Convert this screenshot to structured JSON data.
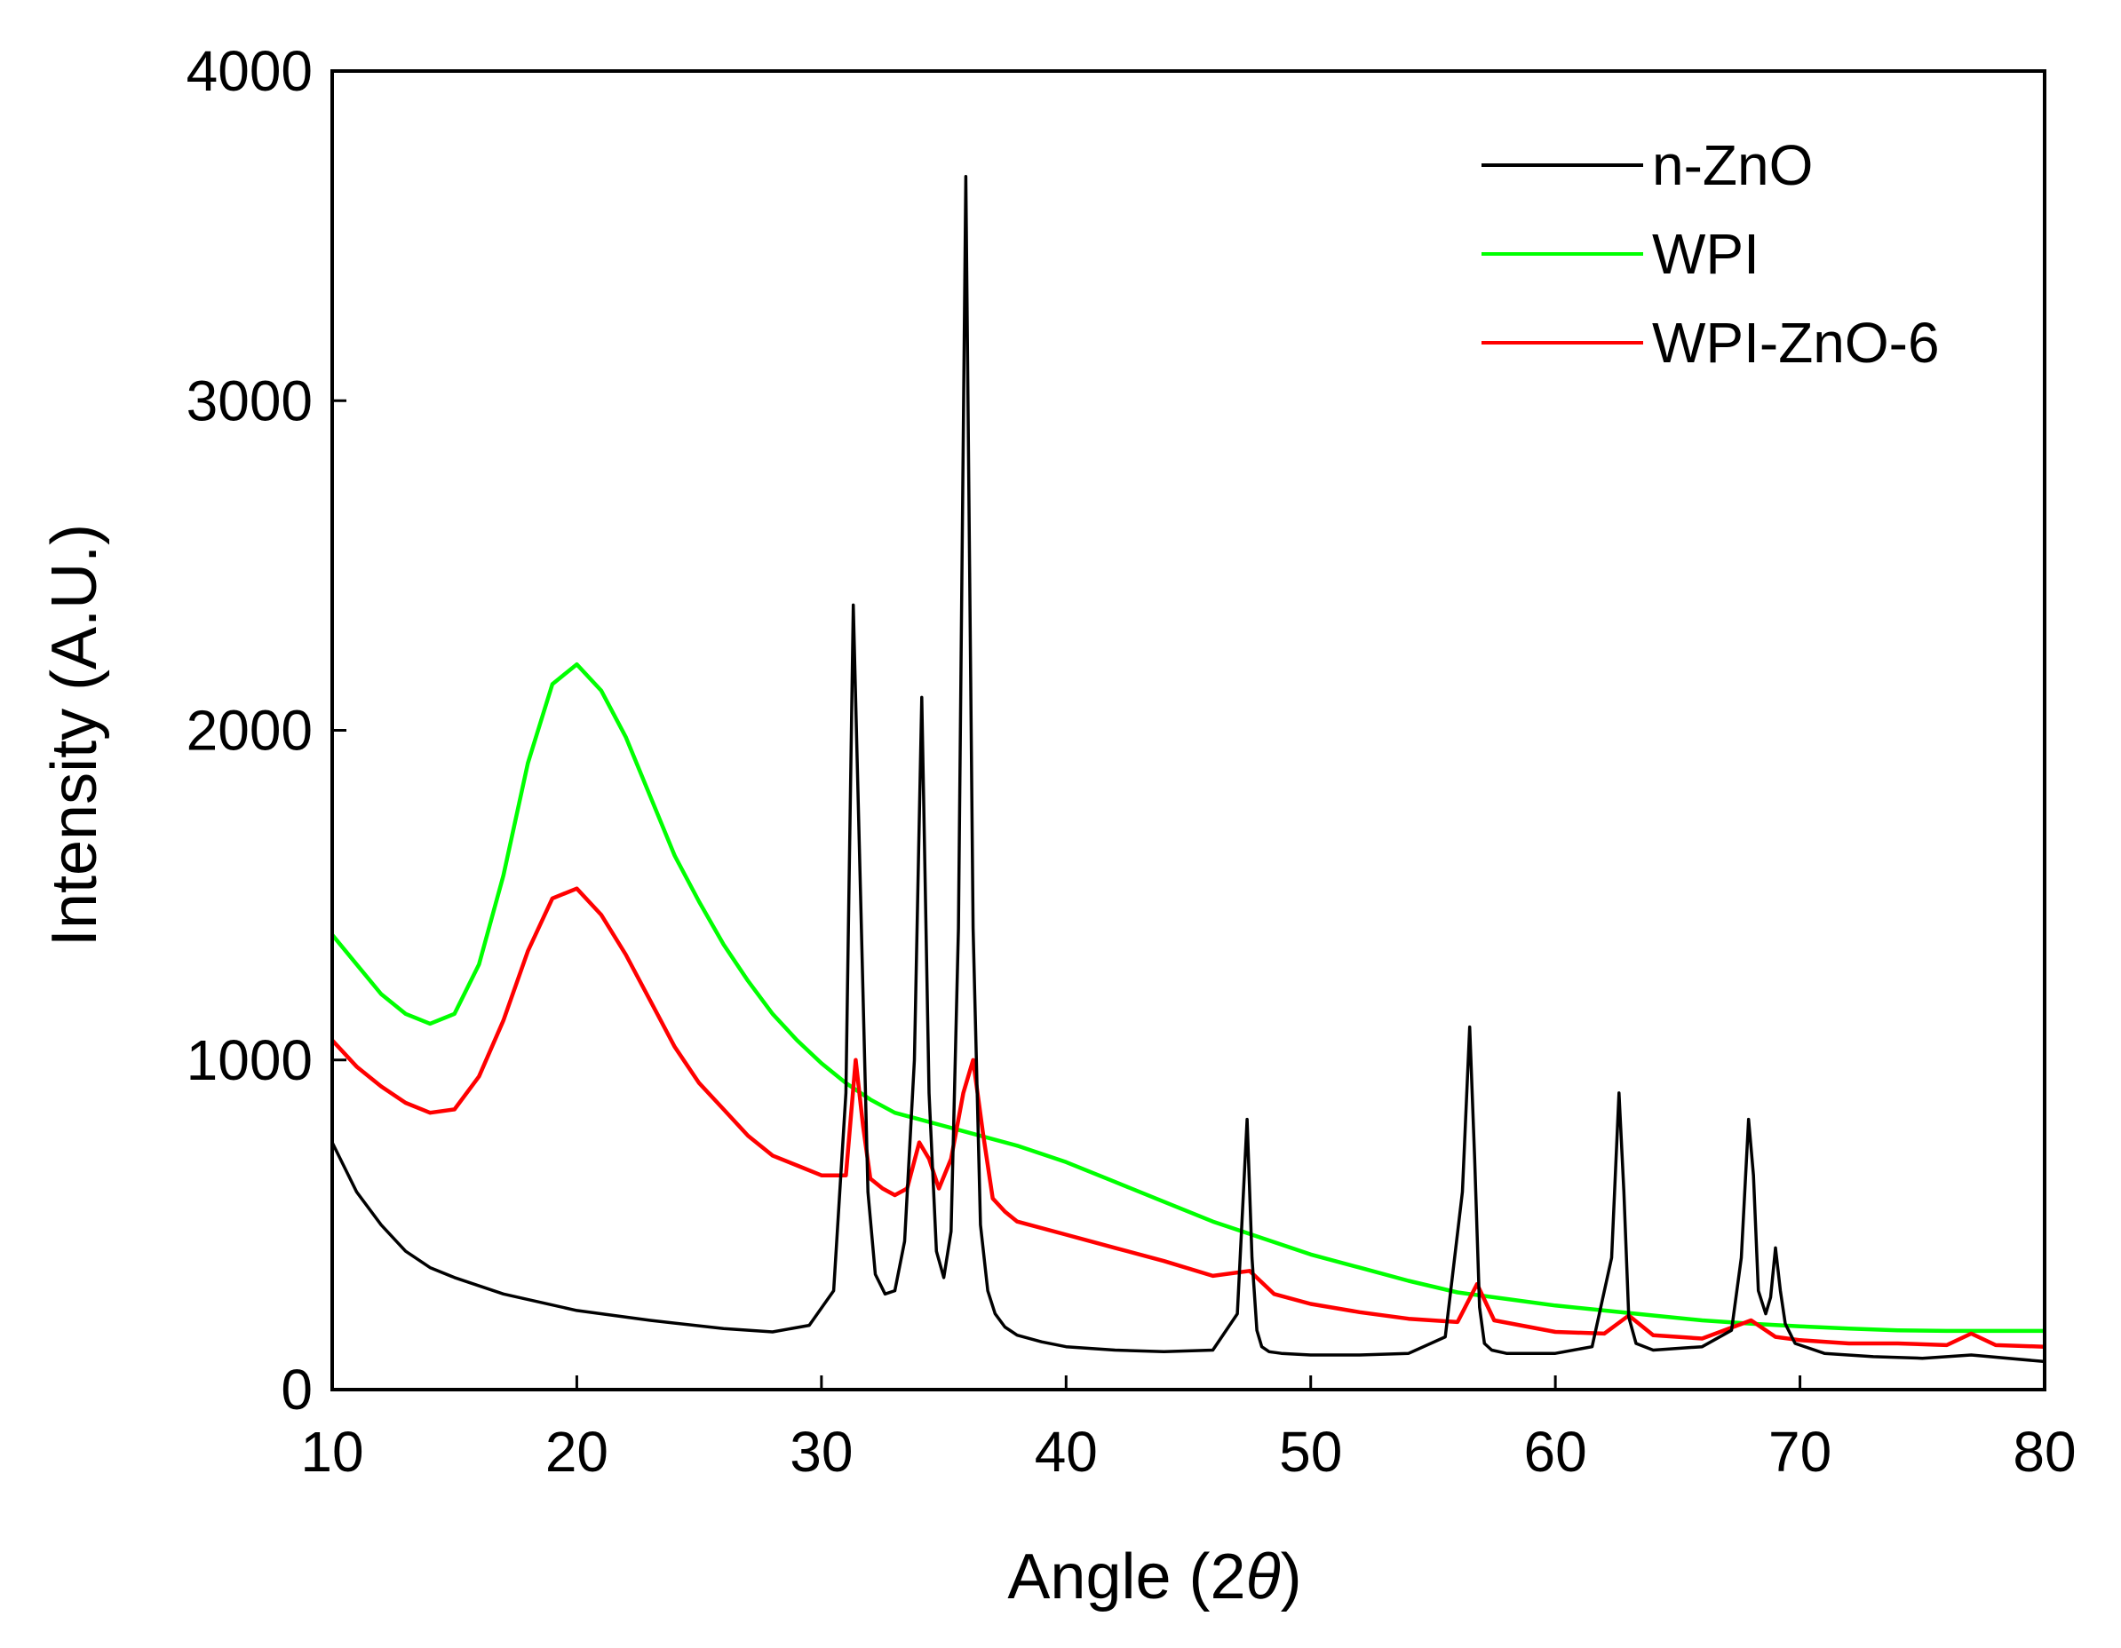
{
  "chart_data": {
    "type": "line",
    "title": "",
    "xlabel": "Angle (2θ)",
    "xlabel_prefix": "Angle (2",
    "xlabel_symbol": "θ",
    "xlabel_suffix": ")",
    "ylabel": "Intensity (A.U.)",
    "xlim": [
      10,
      80
    ],
    "ylim": [
      0,
      4000
    ],
    "xticks": [
      10,
      20,
      30,
      40,
      50,
      60,
      70,
      80
    ],
    "yticks": [
      0,
      1000,
      2000,
      3000,
      4000
    ],
    "grid": false,
    "legend_position": "top-right",
    "series": [
      {
        "name": "n-ZnO",
        "color": "#000000",
        "x": [
          10,
          11,
          12,
          13,
          14,
          15,
          17,
          20,
          23,
          26,
          28,
          29.5,
          30.5,
          31,
          31.3,
          31.6,
          31.9,
          32.2,
          32.6,
          33,
          33.4,
          33.8,
          34.1,
          34.4,
          34.7,
          35.0,
          35.3,
          35.6,
          35.9,
          36.2,
          36.5,
          36.8,
          37.1,
          37.5,
          38,
          39,
          40,
          42,
          44,
          46,
          47,
          47.4,
          47.6,
          47.8,
          48.0,
          48.3,
          48.8,
          50,
          52,
          54,
          55.5,
          56.2,
          56.5,
          56.7,
          56.9,
          57.1,
          57.4,
          58,
          60,
          61.5,
          62.3,
          62.6,
          62.8,
          63.0,
          63.3,
          64,
          66,
          67.2,
          67.6,
          67.9,
          68.1,
          68.3,
          68.6,
          68.8,
          69.0,
          69.2,
          69.4,
          69.8,
          71,
          73,
          75,
          77,
          80
        ],
        "values": [
          750,
          600,
          500,
          420,
          370,
          340,
          290,
          240,
          210,
          185,
          175,
          195,
          300,
          900,
          2380,
          1500,
          600,
          350,
          290,
          300,
          450,
          1000,
          2100,
          900,
          420,
          340,
          480,
          1400,
          3680,
          1400,
          500,
          300,
          230,
          190,
          165,
          145,
          130,
          120,
          115,
          120,
          230,
          820,
          400,
          180,
          130,
          115,
          110,
          105,
          105,
          110,
          160,
          600,
          1100,
          700,
          250,
          140,
          120,
          110,
          110,
          130,
          400,
          900,
          600,
          220,
          140,
          120,
          130,
          180,
          400,
          820,
          650,
          300,
          230,
          280,
          430,
          300,
          200,
          140,
          110,
          100,
          95,
          105,
          85
        ]
      },
      {
        "name": "WPI",
        "color": "#00ff00",
        "x": [
          10,
          11,
          12,
          13,
          14,
          15,
          16,
          17,
          18,
          19,
          20,
          21,
          22,
          23,
          24,
          25,
          26,
          27,
          28,
          29,
          30,
          31,
          32,
          33,
          34,
          35,
          36,
          38,
          40,
          42,
          44,
          46,
          48,
          50,
          52,
          54,
          56,
          58,
          60,
          62,
          64,
          66,
          68,
          70,
          72,
          74,
          76,
          78,
          80
        ],
        "values": [
          1380,
          1290,
          1200,
          1140,
          1110,
          1140,
          1290,
          1560,
          1900,
          2140,
          2200,
          2120,
          1980,
          1800,
          1620,
          1480,
          1350,
          1240,
          1140,
          1060,
          990,
          930,
          880,
          840,
          820,
          800,
          780,
          740,
          690,
          630,
          570,
          510,
          460,
          410,
          370,
          330,
          295,
          275,
          255,
          240,
          225,
          210,
          200,
          192,
          185,
          180,
          178,
          178,
          178
        ]
      },
      {
        "name": "WPI-ZnO-6",
        "color": "#ff0000",
        "x": [
          10,
          11,
          12,
          13,
          14,
          15,
          16,
          17,
          18,
          19,
          20,
          21,
          22,
          23,
          24,
          25,
          26,
          27,
          28,
          29,
          30,
          31,
          31.4,
          31.7,
          32.0,
          32.5,
          33,
          33.5,
          34.0,
          34.4,
          34.8,
          35.3,
          35.8,
          36.2,
          36.6,
          37.0,
          37.5,
          38,
          40,
          42,
          44,
          46,
          47.5,
          48.5,
          50,
          52,
          54,
          56,
          56.8,
          57.5,
          60,
          62,
          63,
          64,
          66,
          68,
          69,
          70,
          72,
          74,
          76,
          77,
          78,
          80
        ],
        "values": [
          1060,
          980,
          920,
          870,
          840,
          850,
          950,
          1120,
          1330,
          1490,
          1520,
          1440,
          1320,
          1180,
          1040,
          930,
          850,
          770,
          710,
          680,
          650,
          650,
          1000,
          800,
          640,
          610,
          590,
          610,
          750,
          700,
          610,
          700,
          900,
          1000,
          780,
          580,
          540,
          510,
          470,
          430,
          390,
          345,
          360,
          290,
          260,
          235,
          215,
          205,
          320,
          210,
          175,
          170,
          225,
          165,
          155,
          210,
          160,
          150,
          140,
          140,
          135,
          170,
          135,
          130
        ]
      }
    ]
  }
}
